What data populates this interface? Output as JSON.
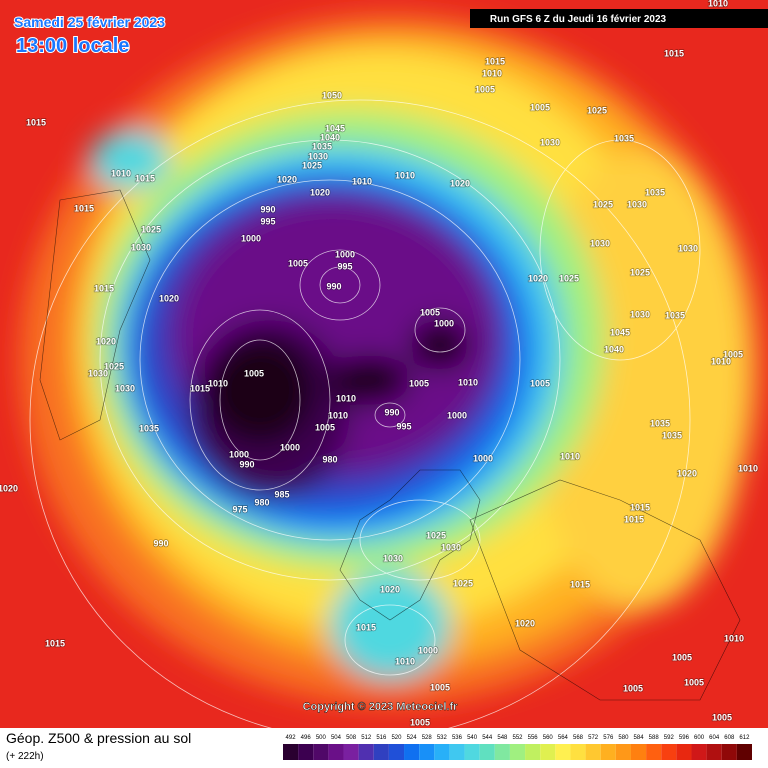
{
  "header": {
    "date": "Samedi 25 février 2023",
    "time": "13:00 locale",
    "run": "Run GFS 6 Z du Jeudi 16 février 2023"
  },
  "footer": {
    "title": "Géop. Z500 & pression au sol",
    "lead": "(+ 222h)"
  },
  "copyright": "Copyright © 2023 Meteociel.fr",
  "scale": {
    "labels": [
      492,
      496,
      500,
      504,
      508,
      512,
      516,
      520,
      524,
      528,
      532,
      536,
      540,
      544,
      548,
      552,
      556,
      560,
      564,
      568,
      572,
      576,
      580,
      584,
      588,
      592,
      596,
      600,
      604,
      608,
      612
    ],
    "colors": [
      "#2a0030",
      "#3c0050",
      "#500868",
      "#6a1088",
      "#7a20a0",
      "#5030b0",
      "#3040c0",
      "#2050d8",
      "#1070f0",
      "#1890f8",
      "#28b0f8",
      "#40c8f0",
      "#50d8e0",
      "#60e0c0",
      "#80e8a0",
      "#a0f080",
      "#c0f060",
      "#e0f050",
      "#fff050",
      "#ffe040",
      "#ffc830",
      "#ffb020",
      "#ff9818",
      "#ff8010",
      "#ff6010",
      "#f84010",
      "#e82810",
      "#d01818",
      "#b01010",
      "#900808",
      "#600000"
    ]
  },
  "isobar_labels": [
    1010,
    1015,
    1015,
    1010,
    1005,
    1050,
    1015,
    1045,
    1040,
    1035,
    1030,
    1025,
    1010,
    1015,
    1020,
    1020,
    1010,
    1010,
    1020,
    1005,
    1025,
    1030,
    1035,
    1035,
    1025,
    1030,
    1030,
    1030,
    1025,
    1020,
    1025,
    990,
    995,
    1000,
    1015,
    1025,
    1030,
    1005,
    1000,
    995,
    990,
    1015,
    1020,
    1005,
    1000,
    1030,
    1035,
    1045,
    1020,
    1040,
    1005,
    1010,
    1025,
    1030,
    1005,
    1005,
    1010,
    1005,
    1030,
    1015,
    1010,
    1010,
    990,
    995,
    1000,
    1035,
    1035,
    1035,
    1010,
    1005,
    1000,
    990,
    1000,
    980,
    1000,
    1010,
    1020,
    1010,
    1015,
    1015,
    985,
    980,
    975,
    990,
    1025,
    1030,
    1030,
    1025,
    1015,
    1020,
    1020,
    1015,
    1000,
    1010,
    1010,
    1005,
    1015,
    1005,
    1005,
    1005,
    1005,
    1005,
    1020
  ]
}
